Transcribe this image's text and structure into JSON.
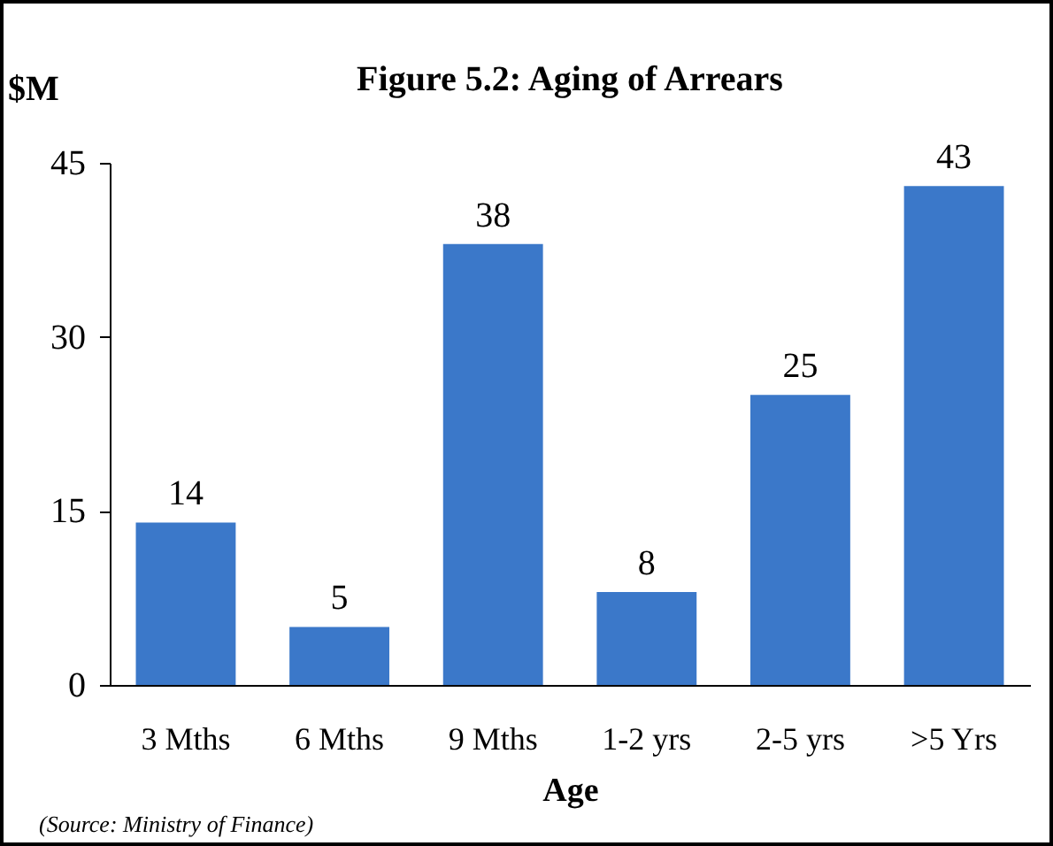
{
  "chart_data": {
    "type": "bar",
    "title": "Figure 5.2: Aging of Arrears",
    "ylabel": "$M",
    "xlabel": "Age",
    "categories": [
      "3 Mths",
      "6 Mths",
      "9  Mths",
      "1-2 yrs",
      "2-5 yrs",
      ">5 Yrs"
    ],
    "values": [
      14,
      5,
      38,
      8,
      25,
      43
    ],
    "color": "#3b78c9",
    "ylim": [
      0,
      45
    ],
    "yticks": [
      0,
      15,
      30,
      45
    ],
    "grid": false,
    "data_labels": true,
    "annotations": [
      "(Source: Ministry of Finance)"
    ]
  }
}
